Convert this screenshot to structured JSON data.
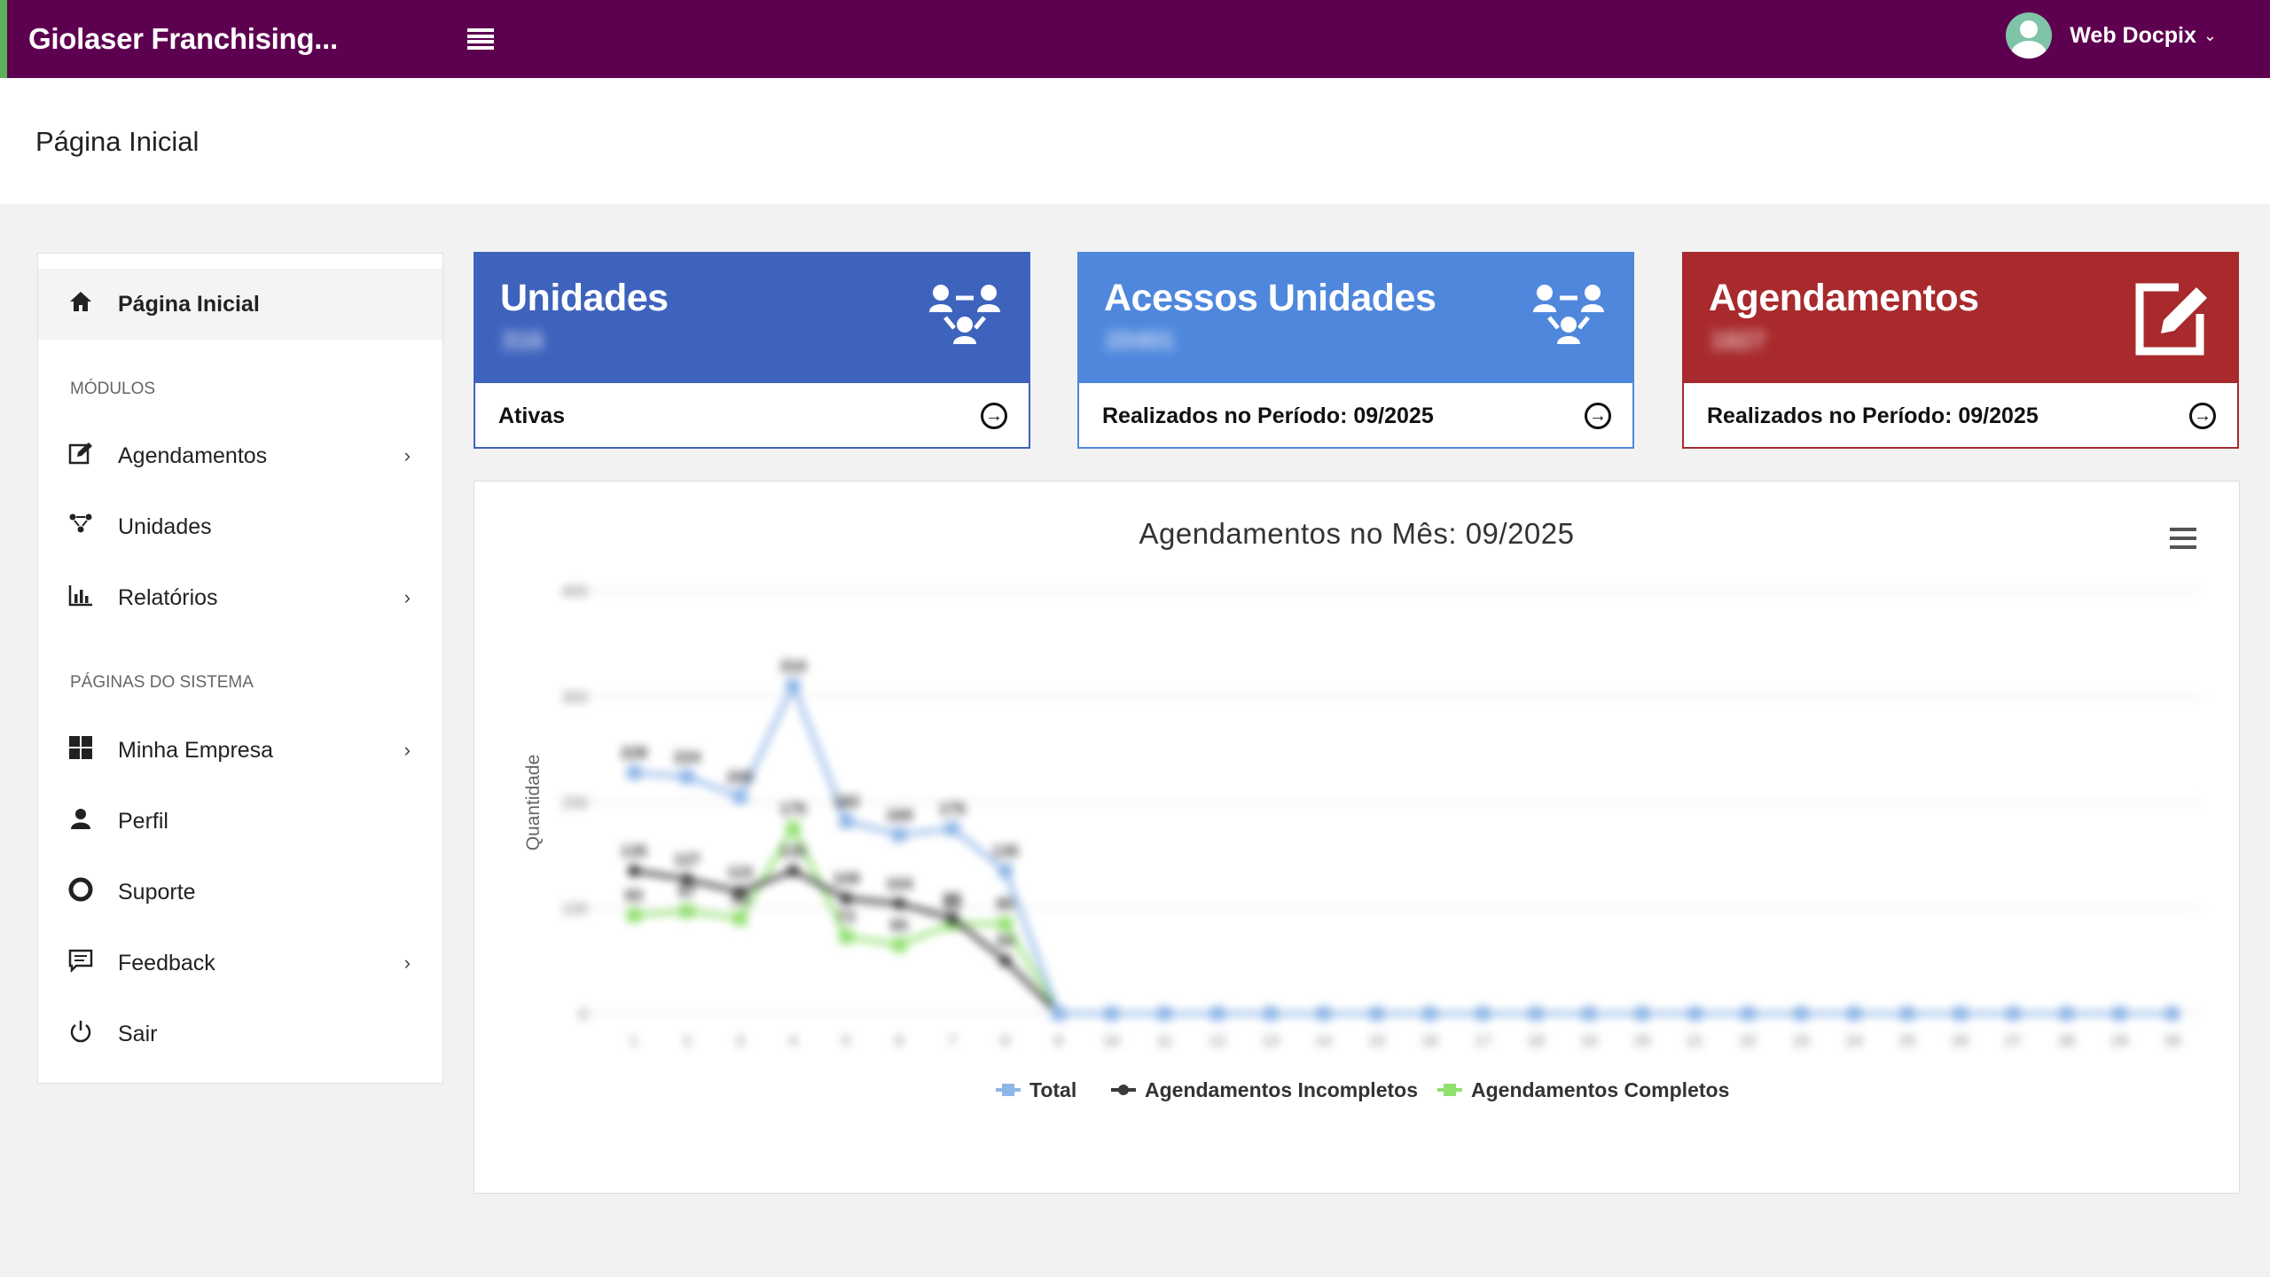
{
  "app": {
    "title": "Giolaser Franchising..."
  },
  "user": {
    "name": "Web Docpix"
  },
  "page": {
    "title": "Página Inicial"
  },
  "sidebar": {
    "items": [
      {
        "label": "Página Inicial",
        "icon": "home-icon"
      },
      {
        "label": "Agendamentos",
        "icon": "edit-icon"
      },
      {
        "label": "Unidades",
        "icon": "network-icon"
      },
      {
        "label": "Relatórios",
        "icon": "bar-chart-icon"
      },
      {
        "label": "Minha Empresa",
        "icon": "grid-icon"
      },
      {
        "label": "Perfil",
        "icon": "user-icon"
      },
      {
        "label": "Suporte",
        "icon": "lifebuoy-icon"
      },
      {
        "label": "Feedback",
        "icon": "comment-icon"
      },
      {
        "label": "Sair",
        "icon": "power-icon"
      }
    ],
    "sections": {
      "modules": "MÓDULOS",
      "system_pages": "PÁGINAS DO SISTEMA"
    }
  },
  "cards": [
    {
      "title": "Unidades",
      "footer": "Ativas",
      "color": "#3e63bd",
      "icon": "network-icon"
    },
    {
      "title": "Acessos Unidades",
      "footer": "Realizados no Período: 09/2025",
      "color": "#4f87dd",
      "icon": "network-icon"
    },
    {
      "title": "Agendamentos",
      "footer": "Realizados no Período: 09/2025",
      "color": "#a82a2d",
      "icon": "edit-icon"
    }
  ],
  "chart": {
    "title": "Agendamentos no Mês: 09/2025",
    "ylabel": "Quantidade",
    "legend": [
      "Total",
      "Agendamentos Incompletos",
      "Agendamentos Completos"
    ]
  },
  "chart_data": {
    "type": "line",
    "title": "Agendamentos no Mês: 09/2025",
    "ylabel": "Quantidade",
    "ylim": [
      0,
      400
    ],
    "x": [
      1,
      2,
      3,
      4,
      5,
      6,
      7,
      8,
      9,
      10,
      11,
      12,
      13,
      14,
      15,
      16,
      17,
      18,
      19,
      20,
      21,
      22,
      23,
      24,
      25,
      26,
      27,
      28,
      29,
      30
    ],
    "series": [
      {
        "name": "Total",
        "color": "#8fb6e8",
        "values": [
          228,
          224,
          205,
          310,
          182,
          169,
          175,
          135,
          0,
          0,
          0,
          0,
          0,
          0,
          0,
          0,
          0,
          0,
          0,
          0,
          0,
          0,
          0,
          0,
          0,
          0,
          0,
          0,
          0,
          0
        ]
      },
      {
        "name": "Agendamentos Incompletos",
        "color": "#3a3a3a",
        "values": [
          135,
          127,
          115,
          135,
          109,
          104,
          90,
          50,
          0,
          0,
          0,
          0,
          0,
          0,
          0,
          0,
          0,
          0,
          0,
          0,
          0,
          0,
          0,
          0,
          0,
          0,
          0,
          0,
          0,
          0
        ]
      },
      {
        "name": "Agendamentos Completos",
        "color": "#90e070",
        "values": [
          93,
          97,
          90,
          175,
          73,
          65,
          85,
          85,
          0,
          0,
          0,
          0,
          0,
          0,
          0,
          0,
          0,
          0,
          0,
          0,
          0,
          0,
          0,
          0,
          0,
          0,
          0,
          0,
          0,
          0
        ]
      }
    ]
  }
}
